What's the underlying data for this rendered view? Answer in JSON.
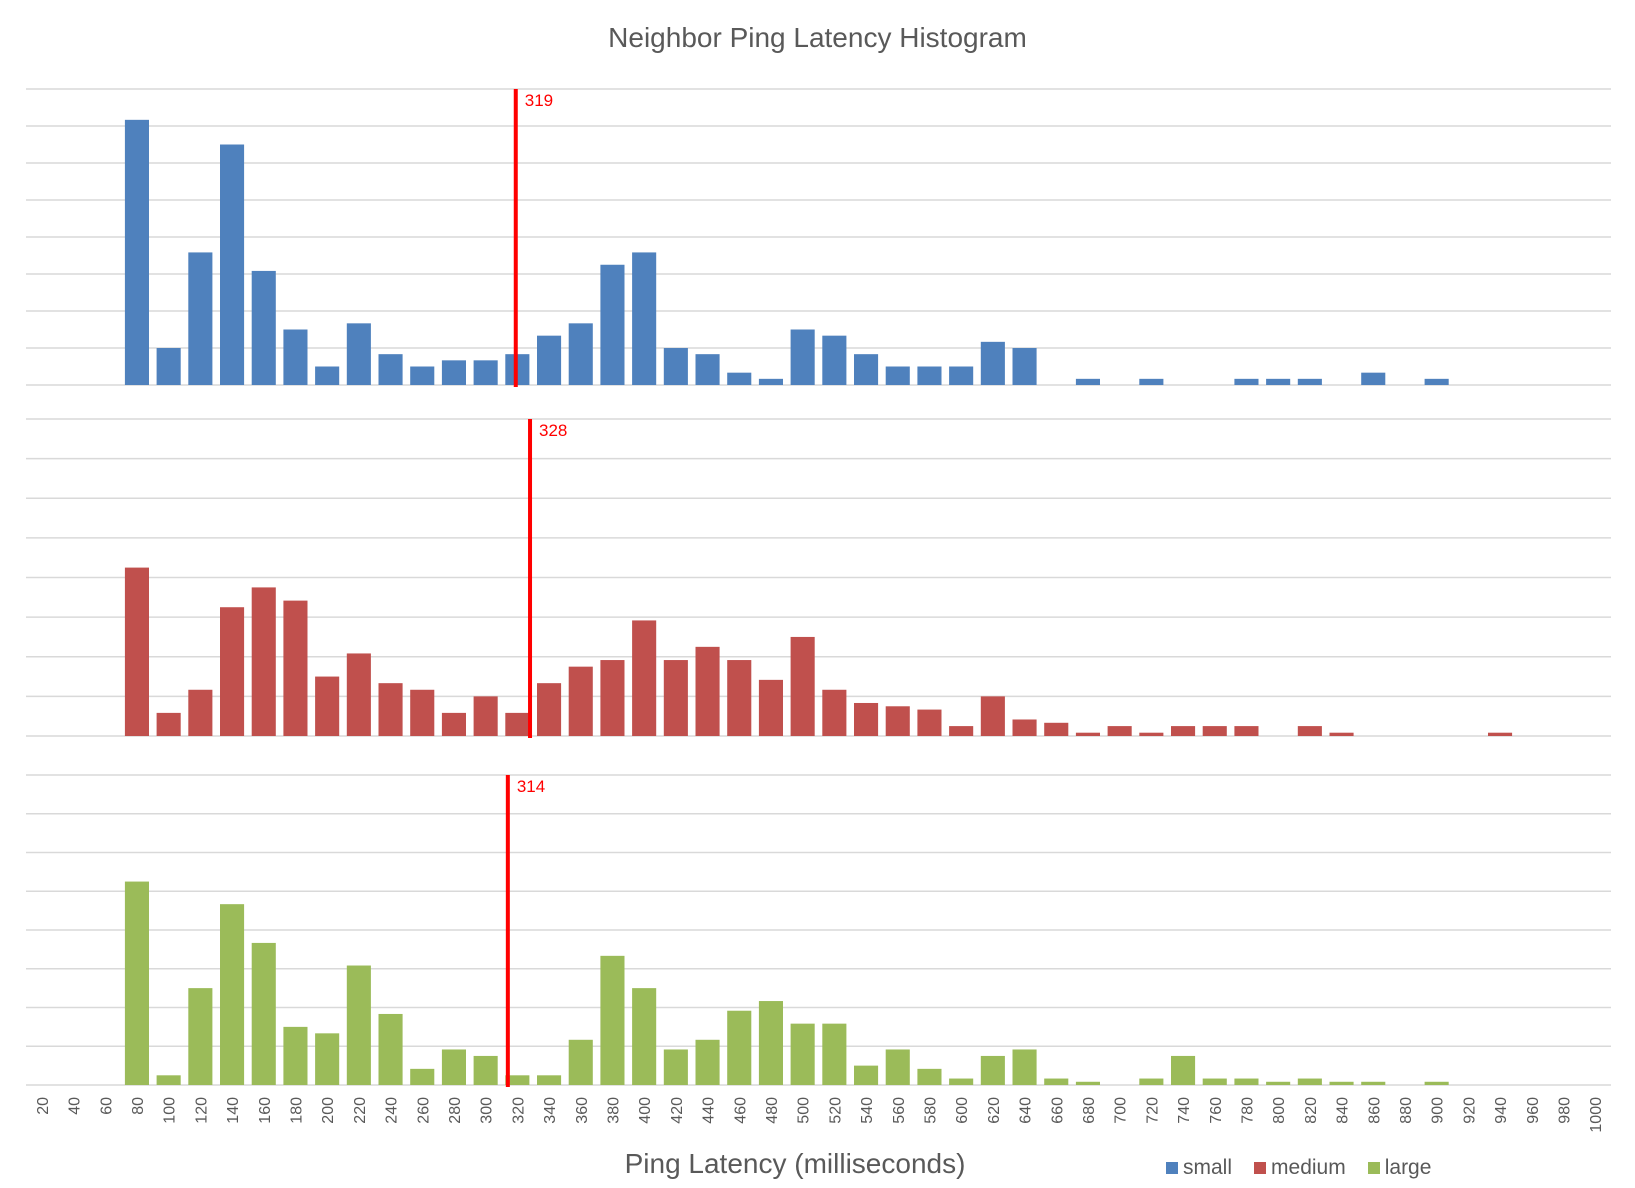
{
  "chart_data": {
    "type": "bar",
    "title": "Neighbor Ping  Latency Histogram",
    "xlabel": "Ping Latency (milliseconds)",
    "ylabel": "",
    "layout": "three stacked histogram panels sharing x-axis; horizontal gridlines, no y tick labels; legend bottom-right",
    "grid": true,
    "legend_position": "bottom-right",
    "y_units_note": "relative counts (12 units per gridline step, 8 gridline steps per panel; no y-axis labels shown)",
    "ylim": [
      0,
      96
    ],
    "categories": [
      20,
      40,
      60,
      80,
      100,
      120,
      140,
      160,
      180,
      200,
      220,
      240,
      260,
      280,
      300,
      320,
      340,
      360,
      380,
      400,
      420,
      440,
      460,
      480,
      500,
      520,
      540,
      560,
      580,
      600,
      620,
      640,
      660,
      680,
      700,
      720,
      740,
      760,
      780,
      800,
      820,
      840,
      860,
      880,
      900,
      920,
      940,
      960,
      980,
      1000
    ],
    "series": [
      {
        "name": "small",
        "color": "#4F81BD",
        "mean_marker": 319,
        "values": [
          0,
          0,
          0,
          86,
          12,
          43,
          78,
          37,
          18,
          6,
          20,
          10,
          6,
          8,
          8,
          10,
          16,
          20,
          39,
          43,
          12,
          10,
          4,
          2,
          18,
          16,
          10,
          6,
          6,
          6,
          14,
          12,
          0,
          2,
          0,
          2,
          0,
          0,
          2,
          2,
          2,
          0,
          4,
          0,
          2,
          0,
          0,
          0,
          0,
          0
        ]
      },
      {
        "name": "medium",
        "color": "#C0504D",
        "mean_marker": 328,
        "values": [
          0,
          0,
          0,
          51,
          7,
          14,
          39,
          45,
          41,
          18,
          25,
          16,
          14,
          7,
          12,
          7,
          16,
          21,
          23,
          35,
          23,
          27,
          23,
          17,
          30,
          14,
          10,
          9,
          8,
          3,
          12,
          5,
          4,
          1,
          3,
          1,
          3,
          3,
          3,
          0,
          3,
          1,
          0,
          0,
          0,
          0,
          1,
          0,
          0,
          0
        ]
      },
      {
        "name": "large",
        "color": "#9BBB59",
        "mean_marker": 314,
        "values": [
          0,
          0,
          0,
          63,
          3,
          30,
          56,
          44,
          18,
          16,
          37,
          22,
          5,
          11,
          9,
          3,
          3,
          14,
          40,
          30,
          11,
          14,
          23,
          26,
          19,
          19,
          6,
          11,
          5,
          2,
          9,
          11,
          2,
          1,
          0,
          2,
          9,
          2,
          2,
          1,
          2,
          1,
          1,
          0,
          1,
          0,
          0,
          0,
          0,
          0
        ]
      }
    ],
    "annotations": [
      {
        "panel": "small",
        "type": "vertical-line",
        "x": 319,
        "label": "319",
        "color": "#FF0000"
      },
      {
        "panel": "medium",
        "type": "vertical-line",
        "x": 328,
        "label": "328",
        "color": "#FF0000"
      },
      {
        "panel": "large",
        "type": "vertical-line",
        "x": 314,
        "label": "314",
        "color": "#FF0000"
      }
    ]
  },
  "legend": {
    "items": [
      {
        "label": "small",
        "color": "#4F81BD"
      },
      {
        "label": "medium",
        "color": "#C0504D"
      },
      {
        "label": "large",
        "color": "#9BBB59"
      }
    ]
  }
}
